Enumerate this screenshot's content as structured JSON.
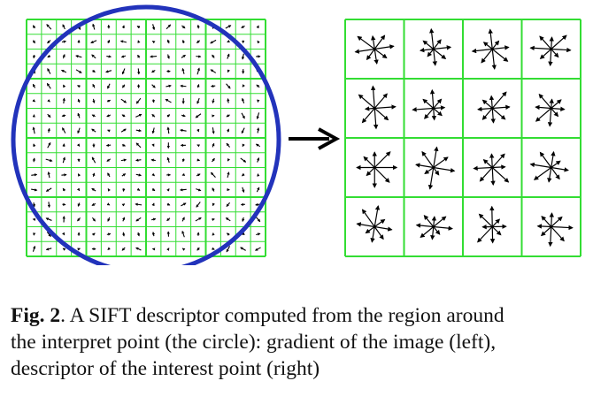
{
  "figure": {
    "colors": {
      "grid": "#33dd33",
      "circle": "#2233bb",
      "arrow": "#000000",
      "background": "#ffffff"
    },
    "left_panel": {
      "description_icon": "gradient-vector-field",
      "cells": 16,
      "blocks": 4
    },
    "right_panel": {
      "description_icon": "orientation-histograms",
      "blocks": 4,
      "bins_per_histogram": 8
    },
    "transition_icon": "right-arrow-icon"
  },
  "caption": {
    "label": "Fig. 2",
    "line1_rest": ".  A SIFT descriptor computed from the region around",
    "line2": "the interpret point (the circle):  gradient of the image (left),",
    "line3": "descriptor of the interest point (right)"
  }
}
